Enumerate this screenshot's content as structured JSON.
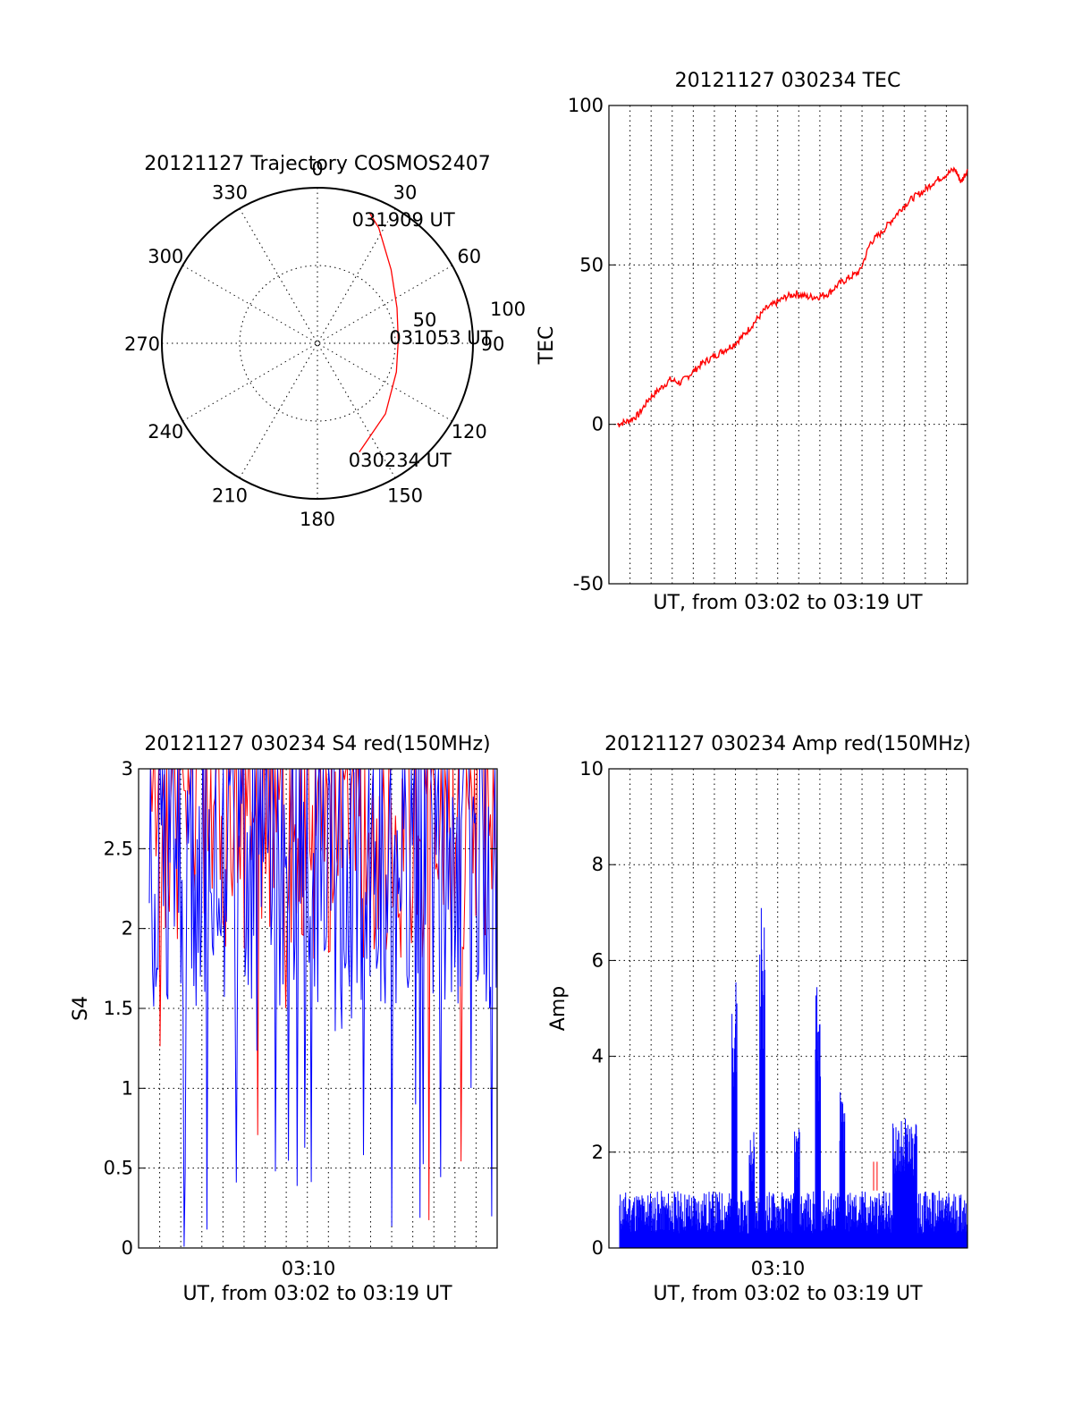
{
  "chart_data": [
    {
      "type": "polar",
      "title": "20121127 Trajectory COSMOS2407",
      "angle_ticks": [
        "0",
        "30",
        "60",
        "90",
        "120",
        "150",
        "180",
        "210",
        "240",
        "270",
        "300",
        "330"
      ],
      "radial_ticks": [
        "50",
        "100"
      ],
      "rlim": [
        0,
        100
      ],
      "grid": true,
      "series": [
        {
          "color": "#ff0000",
          "points": [
            {
              "az": 159,
              "r": 75
            },
            {
              "az": 136,
              "r": 63
            },
            {
              "az": 110,
              "r": 54
            },
            {
              "az": 88,
              "r": 52
            },
            {
              "az": 66,
              "r": 56
            },
            {
              "az": 45,
              "r": 67
            },
            {
              "az": 28,
              "r": 84
            },
            {
              "az": 22,
              "r": 90
            }
          ]
        }
      ],
      "annotations": [
        {
          "text": "031909 UT",
          "az": 22,
          "r": 90
        },
        {
          "text": "031053 UT",
          "az": 88,
          "r": 52
        },
        {
          "text": "030234 UT",
          "az": 159,
          "r": 75
        }
      ]
    },
    {
      "type": "line",
      "title": "20121127 030234 TEC",
      "xlabel": "UT, from 03:02 to 03:19 UT",
      "ylabel": "TEC",
      "ylim": [
        -50,
        100
      ],
      "yticks": [
        "-50",
        "0",
        "50",
        "100"
      ],
      "xlim_minutes": [
        2.6,
        19.6
      ],
      "x_vertical_grid_count": 16,
      "grid": true,
      "series": [
        {
          "color": "#ff0000",
          "x_minutes": [
            3.0,
            3.5,
            4.0,
            4.5,
            5.0,
            5.5,
            6.0,
            6.5,
            7.0,
            7.5,
            8.0,
            8.5,
            9.0,
            9.5,
            10.0,
            10.5,
            11.0,
            11.5,
            12.0,
            12.5,
            13.0,
            13.5,
            14.0,
            14.5,
            15.0,
            15.5,
            16.0,
            16.5,
            17.0,
            17.5,
            18.0,
            18.5,
            19.0,
            19.3,
            19.6
          ],
          "values": [
            0,
            1,
            3,
            8,
            11,
            14,
            13,
            16,
            19,
            21,
            23,
            25,
            28,
            32,
            36,
            38,
            40,
            41,
            40,
            40,
            41,
            44,
            46,
            48,
            57,
            60,
            64,
            68,
            71,
            73,
            76,
            78,
            80,
            76,
            80
          ]
        }
      ]
    },
    {
      "type": "line",
      "title": "20121127 030234 S4 red(150MHz)",
      "xlabel": "UT, from 03:02 to 03:19 UT",
      "ylabel": "S4",
      "ylim": [
        0,
        3
      ],
      "yticks": [
        "0",
        "0.5",
        "1",
        "1.5",
        "2",
        "2.5",
        "3"
      ],
      "xtick_labels": [
        "03:10"
      ],
      "grid": true,
      "series": [
        {
          "color": "#ff0000"
        },
        {
          "color": "#0000ff"
        }
      ]
    },
    {
      "type": "line",
      "title": "20121127 030234 Amp red(150MHz)",
      "xlabel": "UT, from 03:02 to 03:19 UT",
      "ylabel": "Amp",
      "ylim": [
        0,
        10
      ],
      "yticks": [
        "0",
        "2",
        "4",
        "6",
        "8",
        "10"
      ],
      "xtick_labels": [
        "03:10"
      ],
      "grid": true,
      "series": [
        {
          "color": "#ff0000"
        },
        {
          "color": "#0000ff",
          "peaks": [
            5.7,
            2.5,
            7.5,
            2.5,
            5.5,
            3.3,
            2.7
          ]
        }
      ]
    }
  ]
}
